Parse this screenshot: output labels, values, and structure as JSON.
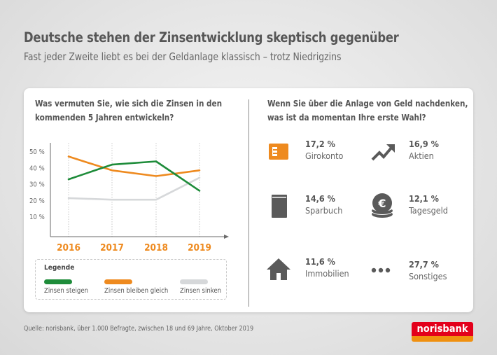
{
  "header": {
    "title": "Deutsche stehen der Zinsentwicklung skeptisch gegenüber",
    "subtitle": "Fast jeder Zweite liebt es bei der Geldanlage klassisch – trotz Niedrigzins"
  },
  "left_panel": {
    "question_line1": "Was vermuten Sie, wie sich die Zinsen in den",
    "question_line2": "kommenden 5 Jahren entwickeln?",
    "legend_title": "Legende"
  },
  "chart_data": {
    "type": "line",
    "title": "Was vermuten Sie, wie sich die Zinsen in den kommenden 5 Jahren entwickeln?",
    "xlabel": "",
    "ylabel": "",
    "categories": [
      "2016",
      "2017",
      "2018",
      "2019"
    ],
    "yticks": [
      "10 %",
      "20 %",
      "30 %",
      "40 %",
      "50 %"
    ],
    "ytick_values": [
      10,
      20,
      30,
      40,
      50
    ],
    "ylim": [
      0,
      55
    ],
    "grid": "vertical-dotted",
    "legend_position": "bottom",
    "series": [
      {
        "name": "Zinsen steigen",
        "color": "#1e8c3a",
        "values": [
          33,
          42,
          44,
          26
        ]
      },
      {
        "name": "Zinsen bleiben gleich",
        "color": "#ee8a1f",
        "values": [
          47,
          38.5,
          35,
          38.5
        ]
      },
      {
        "name": "Zinsen sinken",
        "color": "#d6d8da",
        "values": [
          21.5,
          20.5,
          20.5,
          34
        ]
      }
    ]
  },
  "right_panel": {
    "question_line1": "Wenn Sie über die Anlage von Geld nachdenken,",
    "question_line2": "was ist da momentan Ihre erste Wahl?",
    "items": [
      {
        "icon": "card-icon",
        "value": "17,2 %",
        "label": "Girokonto",
        "color": "#ee8a1f"
      },
      {
        "icon": "trend-up-icon",
        "value": "16,9 %",
        "label": "Aktien",
        "color": "#5a5a5a"
      },
      {
        "icon": "book-icon",
        "value": "14,6 %",
        "label": "Sparbuch",
        "color": "#5a5a5a"
      },
      {
        "icon": "euro-coins-icon",
        "value": "12,1 %",
        "label": "Tagesgeld",
        "color": "#5a5a5a"
      },
      {
        "icon": "house-icon",
        "value": "11,6 %",
        "label": "Immobilien",
        "color": "#5a5a5a"
      },
      {
        "icon": "dots-icon",
        "value": "27,7 %",
        "label": "Sonstiges",
        "color": "#5a5a5a"
      }
    ]
  },
  "footer": {
    "source": "Quelle: norisbank, über 1.000 Befragte, zwischen 18 und 69 Jahre, Oktober 2019",
    "logo_text": "norisbank",
    "logo_red": "#e3001b",
    "logo_orange": "#f0900f"
  }
}
